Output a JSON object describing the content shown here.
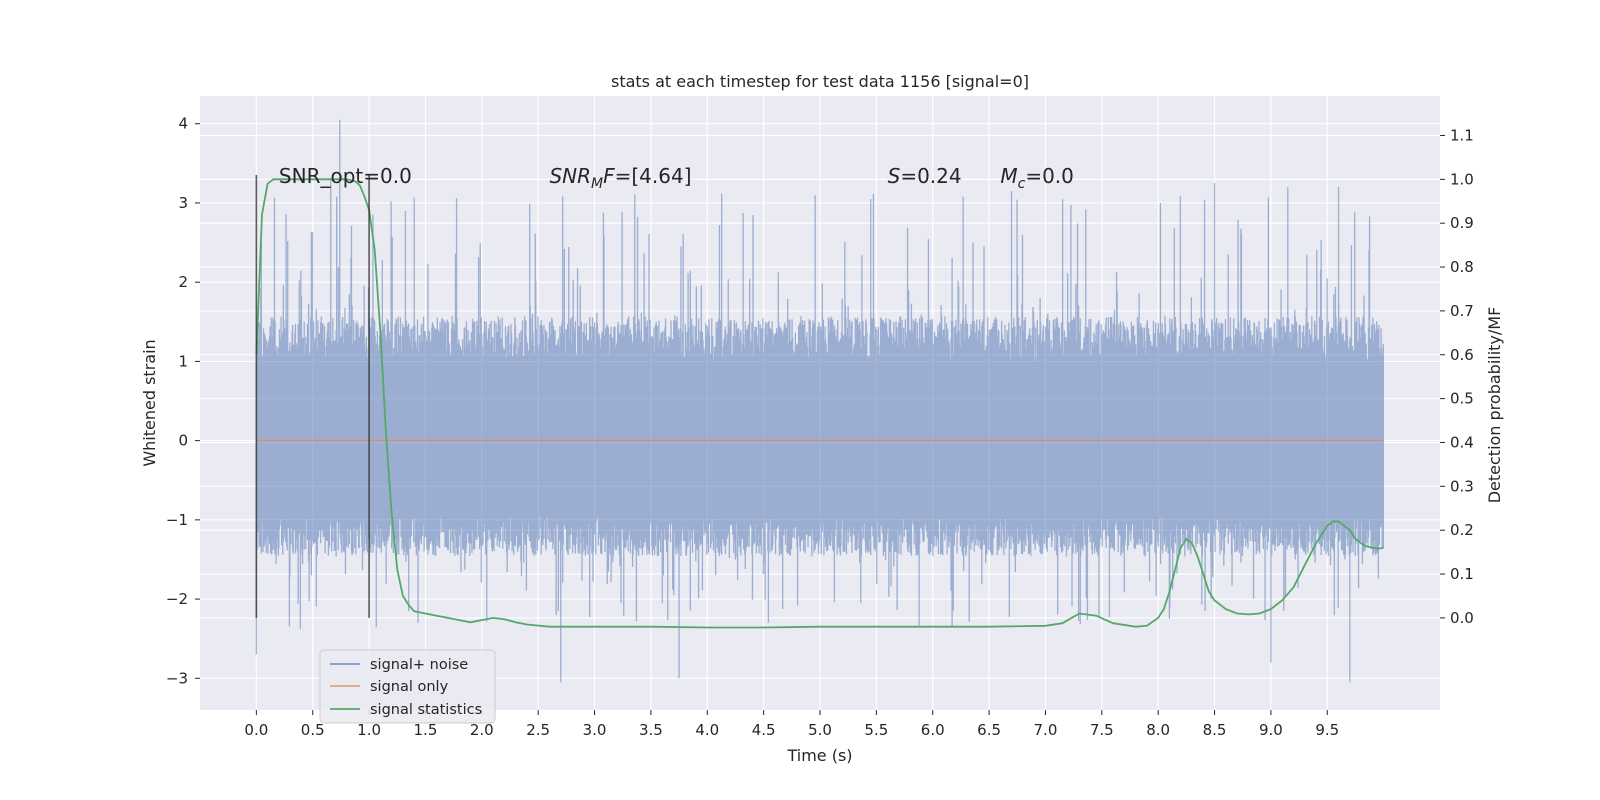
{
  "chart_data": {
    "type": "line",
    "title": "stats at each timestep for test data 1156 [signal=0]",
    "xlabel": "Time (s)",
    "ylabel": "Whitened strain",
    "y2label": "Detection probability/MF",
    "xlim": [
      -0.5,
      10.5
    ],
    "ylim": [
      -3.4,
      4.35
    ],
    "y2lim": [
      -0.21,
      1.19
    ],
    "xticks": [
      "0.0",
      "0.5",
      "1.0",
      "1.5",
      "2.0",
      "2.5",
      "3.0",
      "3.5",
      "4.0",
      "4.5",
      "5.0",
      "5.5",
      "6.0",
      "6.5",
      "7.0",
      "7.5",
      "8.0",
      "8.5",
      "9.0",
      "9.5"
    ],
    "yticks": [
      "−3",
      "−2",
      "−1",
      "0",
      "1",
      "2",
      "3",
      "4"
    ],
    "y2ticks": [
      "0.0",
      "0.1",
      "0.2",
      "0.3",
      "0.4",
      "0.5",
      "0.6",
      "0.7",
      "0.8",
      "0.9",
      "1.0",
      "1.1"
    ],
    "grid": true,
    "legend_position": "lower-left",
    "series": [
      {
        "name": "signal+ noise",
        "axis": "left",
        "color": "#4c72b0",
        "x_range": [
          0.0,
          10.0
        ],
        "envelope_typical": [
          -1.3,
          1.4
        ],
        "envelope_peaks": [
          -3.05,
          4.05
        ],
        "highlights": [
          [
            0.74,
            4.05
          ],
          [
            0.66,
            3.3
          ],
          [
            8.5,
            3.25
          ],
          [
            9.15,
            3.2
          ],
          [
            9.6,
            3.2
          ],
          [
            5.45,
            3.05
          ],
          [
            8.02,
            3.0
          ],
          [
            2.7,
            -3.05
          ],
          [
            3.75,
            -3.0
          ],
          [
            9.7,
            -3.05
          ],
          [
            0.0,
            -2.7
          ],
          [
            9.0,
            -2.8
          ]
        ]
      },
      {
        "name": "signal only",
        "axis": "left",
        "color": "#dd8452",
        "x": [
          0.0,
          10.0
        ],
        "values": [
          0.0,
          0.0
        ]
      },
      {
        "name": "signal statistics",
        "axis": "right",
        "color": "#55a868",
        "x": [
          0.0,
          0.05,
          0.1,
          0.15,
          0.2,
          0.3,
          0.5,
          0.7,
          0.8,
          0.88,
          0.92,
          0.96,
          1.0,
          1.05,
          1.1,
          1.15,
          1.2,
          1.25,
          1.3,
          1.35,
          1.4,
          1.5,
          1.6,
          1.7,
          1.8,
          1.9,
          2.0,
          2.1,
          2.2,
          2.3,
          2.4,
          2.6,
          3.0,
          3.5,
          4.0,
          4.5,
          5.0,
          5.5,
          6.0,
          6.5,
          7.0,
          7.15,
          7.3,
          7.45,
          7.6,
          7.8,
          7.9,
          8.0,
          8.05,
          8.1,
          8.15,
          8.2,
          8.25,
          8.3,
          8.35,
          8.4,
          8.45,
          8.5,
          8.6,
          8.7,
          8.8,
          8.9,
          9.0,
          9.1,
          9.2,
          9.3,
          9.4,
          9.5,
          9.55,
          9.6,
          9.65,
          9.7,
          9.75,
          9.8,
          9.85,
          9.9,
          9.95,
          10.0
        ],
        "values": [
          0.6,
          0.92,
          0.99,
          1.0,
          1.0,
          1.0,
          1.0,
          1.0,
          1.0,
          0.995,
          0.985,
          0.96,
          0.93,
          0.84,
          0.65,
          0.42,
          0.24,
          0.11,
          0.05,
          0.03,
          0.015,
          0.01,
          0.005,
          0.0,
          -0.005,
          -0.01,
          -0.005,
          0.0,
          -0.003,
          -0.01,
          -0.015,
          -0.02,
          -0.02,
          -0.02,
          -0.022,
          -0.022,
          -0.02,
          -0.02,
          -0.02,
          -0.02,
          -0.018,
          -0.012,
          0.01,
          0.005,
          -0.012,
          -0.02,
          -0.018,
          0.0,
          0.02,
          0.06,
          0.11,
          0.16,
          0.18,
          0.17,
          0.14,
          0.1,
          0.06,
          0.04,
          0.02,
          0.01,
          0.008,
          0.01,
          0.02,
          0.04,
          0.07,
          0.12,
          0.17,
          0.21,
          0.22,
          0.22,
          0.21,
          0.2,
          0.18,
          0.17,
          0.163,
          0.16,
          0.158,
          0.16
        ]
      }
    ],
    "vlines": [
      0.0,
      1.0
    ],
    "annotations": [
      {
        "id": "snr_opt",
        "prefix": "SNR_opt=0.0",
        "x": 0.2
      },
      {
        "id": "snr_mf",
        "var": "SNR",
        "sub": "M",
        "var2": "F",
        "value": "=[4.64]",
        "x": 2.6
      },
      {
        "id": "s",
        "var": "S",
        "value": "=0.24",
        "x": 5.6
      },
      {
        "id": "mc",
        "var": "M",
        "sub": "c",
        "value": "=0.0",
        "x": 6.6
      }
    ],
    "annotation_y": 3.25
  }
}
